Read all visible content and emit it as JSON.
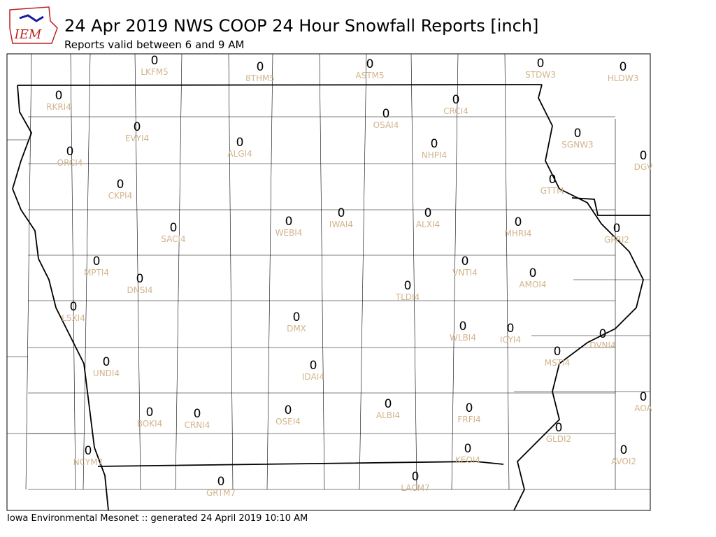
{
  "logo": "IEM",
  "title": "24 Apr 2019 NWS COOP 24 Hour Snowfall Reports [inch]",
  "subtitle": "Reports valid between 6 and 9 AM",
  "footer": "Iowa Environmental Mesonet :: generated 24 April 2019 10:10 AM",
  "stations": [
    {
      "id": "LKFM5",
      "value": 0
    },
    {
      "id": "8THM5",
      "value": 0
    },
    {
      "id": "ASTM5",
      "value": 0
    },
    {
      "id": "STDW3",
      "value": 0
    },
    {
      "id": "HLDW3",
      "value": 0
    },
    {
      "id": "RKRI4",
      "value": 0
    },
    {
      "id": "CRCI4",
      "value": 0
    },
    {
      "id": "OSAI4",
      "value": 0
    },
    {
      "id": "EVYI4",
      "value": 0
    },
    {
      "id": "ALGI4",
      "value": 0
    },
    {
      "id": "NHPI4",
      "value": 0
    },
    {
      "id": "SGNW3",
      "value": 0
    },
    {
      "id": "DGV",
      "value": 0
    },
    {
      "id": "ORCI4",
      "value": 0
    },
    {
      "id": "CKPI4",
      "value": 0
    },
    {
      "id": "GTTI4",
      "value": 0
    },
    {
      "id": "ALXI4",
      "value": 0
    },
    {
      "id": "IWAI4",
      "value": 0
    },
    {
      "id": "WEBI4",
      "value": 0
    },
    {
      "id": "SACI4",
      "value": 0
    },
    {
      "id": "MHRI4",
      "value": 0
    },
    {
      "id": "GPRI2",
      "value": 0
    },
    {
      "id": "MPTI4",
      "value": 0
    },
    {
      "id": "VNTI4",
      "value": 0
    },
    {
      "id": "DNSI4",
      "value": 0
    },
    {
      "id": "AMOI4",
      "value": 0
    },
    {
      "id": "TLDI4",
      "value": 0
    },
    {
      "id": "LSXI4",
      "value": 0
    },
    {
      "id": "DMX",
      "value": 0
    },
    {
      "id": "WLBI4",
      "value": 0
    },
    {
      "id": "ICYI4",
      "value": 0
    },
    {
      "id": "DVNI4",
      "value": 0
    },
    {
      "id": "MSTI4",
      "value": 0
    },
    {
      "id": "UNDI4",
      "value": 0
    },
    {
      "id": "IDAI4",
      "value": 0
    },
    {
      "id": "AOA",
      "value": 0
    },
    {
      "id": "BOKI4",
      "value": 0
    },
    {
      "id": "CRNI4",
      "value": 0
    },
    {
      "id": "OSEI4",
      "value": 0
    },
    {
      "id": "ALBI4",
      "value": 0
    },
    {
      "id": "FRFI4",
      "value": 0
    },
    {
      "id": "GLDI2",
      "value": 0
    },
    {
      "id": "KEOI4",
      "value": 0
    },
    {
      "id": "AVOI2",
      "value": 0
    },
    {
      "id": "NCYM7",
      "value": 0
    },
    {
      "id": "GRTM7",
      "value": 0
    },
    {
      "id": "LACM7",
      "value": 0
    }
  ]
}
